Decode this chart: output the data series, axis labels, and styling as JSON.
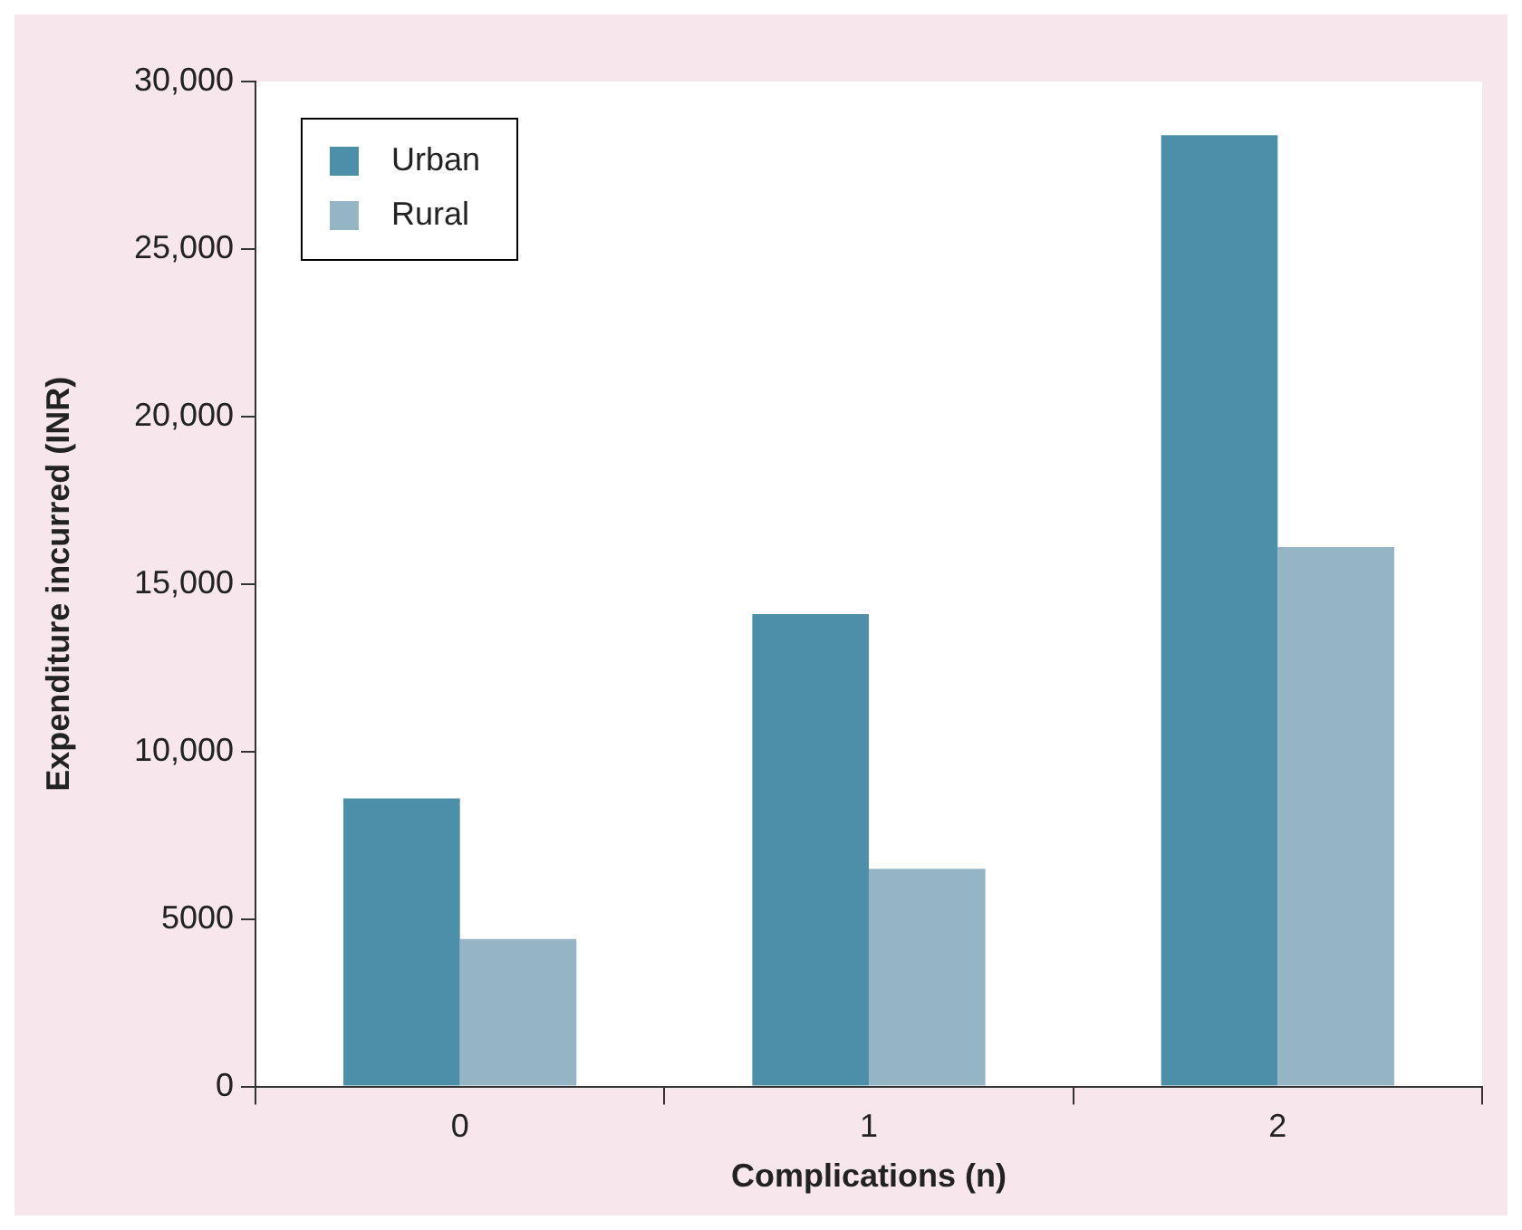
{
  "chart_data": {
    "type": "bar",
    "xlabel": "Complications (n)",
    "ylabel": "Expenditure incurred (INR)",
    "categories": [
      "0",
      "1",
      "2"
    ],
    "series": [
      {
        "name": "Urban",
        "color": "#4d8fa8",
        "values": [
          8600,
          14100,
          28400
        ]
      },
      {
        "name": "Rural",
        "color": "#95b5c5",
        "values": [
          4400,
          6500,
          16100
        ]
      }
    ],
    "ylim": [
      0,
      30000
    ],
    "yticks": [
      0,
      {
        "value": 5000,
        "label": "5000"
      },
      {
        "value": 10000,
        "label": "10,000"
      },
      {
        "value": 15000,
        "label": "15,000"
      },
      {
        "value": 20000,
        "label": "20,000"
      },
      {
        "value": 25000,
        "label": "25,000"
      },
      {
        "value": 30000,
        "label": "30,000"
      }
    ],
    "grid": false,
    "legend": "top left"
  }
}
